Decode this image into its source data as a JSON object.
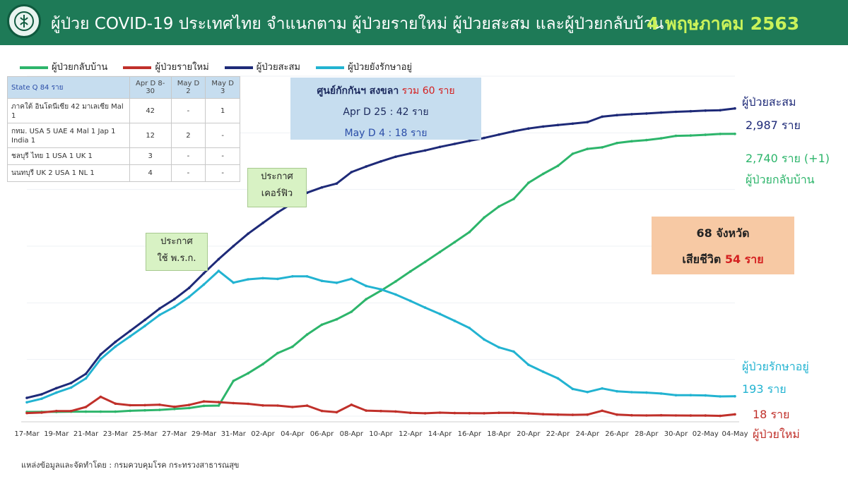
{
  "header": {
    "title": "ผู้ป่วย COVID-19 ประเทศไทย จำแนกตาม ผู้ป่วยรายใหม่ ผู้ป่วยสะสม และผู้ป่วยกลับบ้าน",
    "date": "4 พฤษภาคม 2563"
  },
  "legend": [
    {
      "label": "ผู้ป่วยกลับบ้าน",
      "color": "#2db56b"
    },
    {
      "label": "ผู้ป่วยรายใหม่",
      "color": "#c0302a"
    },
    {
      "label": "ผู้ป่วยสะสม",
      "color": "#1e2a78"
    },
    {
      "label": "ผู้ป่วยยังรักษาอยู่",
      "color": "#22b3d1"
    }
  ],
  "state_q_table": {
    "head": [
      "State Q 84 ราย",
      "Apr D 8-30",
      "May D 2",
      "May D 3"
    ],
    "rows": [
      [
        "ภาคใต้ อินโดนีเซีย 42 มาเลเซีย Mal 1",
        "42",
        "-",
        "1"
      ],
      [
        "กทม. USA 5 UAE 4 Mal 1 Jap 1 India 1",
        "12",
        "2",
        "-"
      ],
      [
        "ชลบุรี ไทย 1 USA 1 UK 1",
        "3",
        "-",
        "-"
      ],
      [
        "นนทบุรี UK 2 USA 1 NL 1",
        "4",
        "-",
        "-"
      ]
    ]
  },
  "quarantine": {
    "line1": "ศูนย์กักกันฯ สงขลา",
    "line1_total": "รวม 60 ราย",
    "line2": "Apr D 25 : 42 ราย",
    "line3": "May D 4 : 18 ราย"
  },
  "callouts": {
    "curfew": [
      "ประกาศ",
      "เคอร์ฟิว"
    ],
    "emergency": [
      "ประกาศ",
      "ใช้ พ.ร.ก."
    ]
  },
  "summary_box": {
    "line1": "68 จังหวัด",
    "line2_label": "เสียชีวิต",
    "line2_value": "54 ราย"
  },
  "end_labels": {
    "cumulative_title": "ผู้ป่วยสะสม",
    "cumulative_value": "2,987 ราย",
    "recovered_value": "2,740 ราย (+1)",
    "recovered_title": "ผู้ป่วยกลับบ้าน",
    "active_title": "ผู้ป่วยรักษาอยู่",
    "active_value": "193 ราย",
    "new_value": "18 ราย",
    "new_title": "ผู้ป่วยใหม่"
  },
  "source": "แหล่งข้อมูลและจัดทำโดย : กรมควบคุมโรค กระทรวงสาธารณสุข",
  "chart_data": {
    "type": "line",
    "x": [
      "17-Mar",
      "18-Mar",
      "19-Mar",
      "20-Mar",
      "21-Mar",
      "22-Mar",
      "23-Mar",
      "24-Mar",
      "25-Mar",
      "26-Mar",
      "27-Mar",
      "28-Mar",
      "29-Mar",
      "30-Mar",
      "31-Mar",
      "01-Apr",
      "02-Apr",
      "03-Apr",
      "04-Apr",
      "05-Apr",
      "06-Apr",
      "07-Apr",
      "08-Apr",
      "09-Apr",
      "10-Apr",
      "11-Apr",
      "12-Apr",
      "13-Apr",
      "14-Apr",
      "15-Apr",
      "16-Apr",
      "17-Apr",
      "18-Apr",
      "19-Apr",
      "20-Apr",
      "21-Apr",
      "22-Apr",
      "23-Apr",
      "24-Apr",
      "25-Apr",
      "26-Apr",
      "27-Apr",
      "28-Apr",
      "29-Apr",
      "30-Apr",
      "01-May",
      "02-May",
      "03-May",
      "04-May"
    ],
    "x_tick_labels": [
      "17-Mar",
      "19-Mar",
      "21-Mar",
      "23-Mar",
      "25-Mar",
      "27-Mar",
      "29-Mar",
      "31-Mar",
      "02-Apr",
      "04-Apr",
      "06-Apr",
      "08-Apr",
      "10-Apr",
      "12-Apr",
      "14-Apr",
      "16-Apr",
      "18-Apr",
      "20-Apr",
      "22-Apr",
      "24-Apr",
      "26-Apr",
      "28-Apr",
      "30-Apr",
      "02-May",
      "04-May"
    ],
    "ylim": [
      0,
      3300
    ],
    "series": [
      {
        "name": "ผู้ป่วยสะสม",
        "color": "#1e2a78",
        "values": [
          177,
          212,
          272,
          322,
          411,
          599,
          721,
          827,
          934,
          1045,
          1136,
          1245,
          1388,
          1524,
          1651,
          1771,
          1875,
          1978,
          2067,
          2169,
          2220,
          2258,
          2369,
          2423,
          2473,
          2518,
          2551,
          2579,
          2613,
          2643,
          2672,
          2700,
          2733,
          2765,
          2792,
          2811,
          2826,
          2839,
          2854,
          2907,
          2922,
          2931,
          2938,
          2947,
          2954,
          2960,
          2966,
          2969,
          2987
        ]
      },
      {
        "name": "ผู้ป่วยกลับบ้าน",
        "color": "#2db56b",
        "values": [
          41,
          42,
          42,
          44,
          44,
          44,
          44,
          52,
          57,
          61,
          70,
          79,
          100,
          103,
          342,
          416,
          505,
          612,
          674,
          793,
          888,
          940,
          1013,
          1135,
          1218,
          1308,
          1405,
          1497,
          1593,
          1689,
          1787,
          1928,
          2035,
          2108,
          2265,
          2352,
          2430,
          2547,
          2594,
          2609,
          2651,
          2669,
          2680,
          2697,
          2721,
          2724,
          2731,
          2739,
          2740
        ]
      },
      {
        "name": "ผู้ป่วยยังรักษาอยู่",
        "color": "#22b3d1",
        "values": [
          135,
          169,
          229,
          277,
          366,
          554,
          676,
          774,
          876,
          983,
          1060,
          1158,
          1278,
          1410,
          1296,
          1328,
          1339,
          1332,
          1357,
          1357,
          1313,
          1295,
          1333,
          1264,
          1231,
          1181,
          1119,
          1054,
          992,
          925,
          856,
          744,
          668,
          627,
          499,
          431,
          367,
          264,
          234,
          269,
          242,
          233,
          229,
          220,
          203,
          204,
          201,
          192,
          193
        ]
      },
      {
        "name": "ผู้ป่วยรายใหม่",
        "color": "#c0302a",
        "values": [
          30,
          35,
          50,
          50,
          89,
          188,
          122,
          106,
          107,
          111,
          91,
          109,
          143,
          136,
          127,
          120,
          104,
          103,
          89,
          102,
          51,
          38,
          111,
          54,
          50,
          45,
          33,
          28,
          34,
          30,
          29,
          28,
          33,
          32,
          27,
          19,
          15,
          13,
          15,
          53,
          15,
          9,
          7,
          9,
          7,
          6,
          6,
          3,
          18
        ]
      }
    ]
  }
}
